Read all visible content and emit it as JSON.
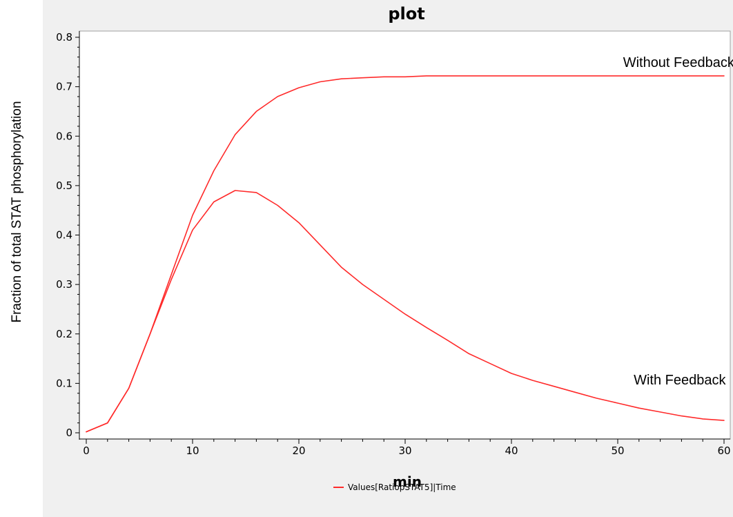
{
  "colors": {
    "series": "#ff2a2a",
    "panel_background": "#f0f0f0",
    "plot_background": "#ffffff"
  },
  "chart_data": {
    "type": "line",
    "title": "plot",
    "xlabel": "min",
    "ylabel": "Fraction of total STAT phosphorylation",
    "xlim": [
      0,
      60
    ],
    "ylim": [
      0,
      0.8
    ],
    "xticks": [
      0,
      10,
      20,
      30,
      40,
      50,
      60
    ],
    "yticks": [
      0,
      0.1,
      0.2,
      0.3,
      0.4,
      0.5,
      0.6,
      0.7,
      0.8
    ],
    "ytick_labels": [
      "0",
      "0.1",
      "0.2",
      "0.3",
      "0.4",
      "0.5",
      "0.6",
      "0.7",
      "0.8"
    ],
    "grid": false,
    "legend": {
      "placement": "bottom-center",
      "entries": [
        "Values[RatiopSTAT5]|Time"
      ]
    },
    "series": [
      {
        "name": "Without Feedback",
        "x": [
          0,
          2,
          4,
          6,
          8,
          10,
          12,
          14,
          16,
          18,
          20,
          22,
          24,
          26,
          28,
          30,
          32,
          36,
          40,
          50,
          60
        ],
        "y": [
          0.002,
          0.02,
          0.09,
          0.2,
          0.32,
          0.44,
          0.53,
          0.603,
          0.65,
          0.68,
          0.698,
          0.71,
          0.716,
          0.718,
          0.72,
          0.72,
          0.722,
          0.722,
          0.722,
          0.722,
          0.722
        ]
      },
      {
        "name": "With Feedback",
        "x": [
          0,
          2,
          4,
          6,
          8,
          10,
          12,
          14,
          16,
          18,
          20,
          22,
          24,
          26,
          28,
          30,
          32,
          34,
          36,
          38,
          40,
          42,
          44,
          46,
          48,
          50,
          52,
          54,
          56,
          58,
          60
        ],
        "y": [
          0.002,
          0.02,
          0.09,
          0.2,
          0.31,
          0.41,
          0.467,
          0.49,
          0.486,
          0.46,
          0.425,
          0.38,
          0.335,
          0.3,
          0.27,
          0.24,
          0.213,
          0.187,
          0.16,
          0.14,
          0.12,
          0.106,
          0.094,
          0.082,
          0.07,
          0.06,
          0.05,
          0.042,
          0.034,
          0.028,
          0.025
        ]
      }
    ],
    "annotations": [
      {
        "text": "Without Feedback",
        "x": 50.5,
        "y": 0.74
      },
      {
        "text": "With Feedback",
        "x": 51.5,
        "y": 0.098
      }
    ]
  }
}
